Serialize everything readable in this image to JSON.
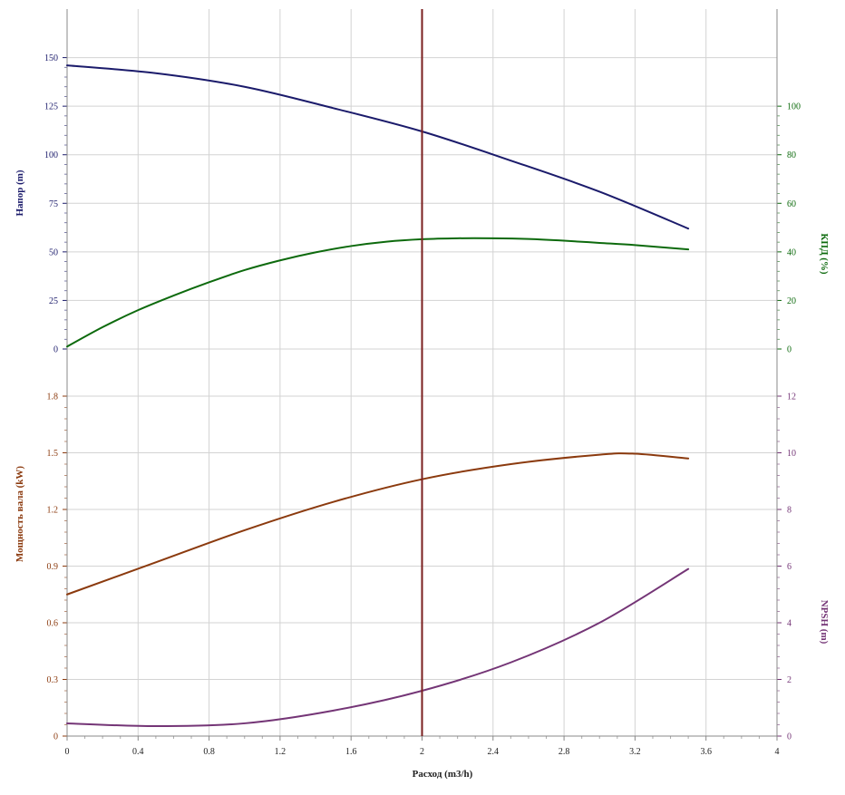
{
  "chart_data": {
    "type": "line",
    "xlabel": "Расход (m3/h)",
    "xlim": [
      0,
      4
    ],
    "x_ticks": [
      "0",
      "0.4",
      "0.8",
      "1.2",
      "1.6",
      "2",
      "2.4",
      "2.8",
      "3.2",
      "3.6",
      "4"
    ],
    "duty_point_x": 2,
    "grid": true,
    "colors": {
      "head": "#1b1b6b",
      "efficiency": "#0d6a0d",
      "power": "#8b3a0e",
      "npsh": "#743576",
      "duty_line": "#7a1f1f",
      "grid": "#d3d3d3"
    },
    "panels": [
      {
        "name": "top",
        "left_axis": {
          "label": "Напор (m)",
          "range": [
            0,
            175
          ],
          "ticks": [
            "0",
            "25",
            "50",
            "75",
            "100",
            "125",
            "150"
          ]
        },
        "right_axis": {
          "label": "КПД (%)",
          "range": [
            0,
            140
          ],
          "ticks": [
            "0",
            "20",
            "40",
            "60",
            "80",
            "100"
          ]
        },
        "series": [
          {
            "key": "head",
            "axis": "left",
            "x": [
              0,
              0.5,
              1.0,
              1.5,
              2.0,
              2.5,
              3.0,
              3.5
            ],
            "y": [
              146,
              142,
              135,
              124,
              112,
              97,
              81,
              62
            ]
          },
          {
            "key": "efficiency",
            "axis": "right",
            "x": [
              0,
              0.2,
              0.4,
              0.6,
              0.8,
              1.0,
              1.2,
              1.4,
              1.6,
              1.8,
              2.0,
              2.2,
              2.4,
              2.6,
              2.8,
              3.0,
              3.2,
              3.5
            ],
            "y": [
              1,
              9,
              16,
              22,
              27.5,
              32.5,
              36.5,
              39.8,
              42.4,
              44.2,
              45.2,
              45.6,
              45.6,
              45.3,
              44.6,
              43.7,
              42.8,
              41
            ]
          }
        ]
      },
      {
        "name": "bottom",
        "left_axis": {
          "label": "Мощность вала (kW)",
          "range": [
            0,
            1.8
          ],
          "ticks": [
            "0",
            "0.3",
            "0.6",
            "0.9",
            "1.2",
            "1.5",
            "1.8"
          ]
        },
        "right_axis": {
          "label": "NPSH (m)",
          "range": [
            0,
            12
          ],
          "ticks": [
            "0",
            "2",
            "4",
            "6",
            "8",
            "10",
            "12"
          ]
        },
        "series": [
          {
            "key": "power",
            "axis": "left",
            "x": [
              0,
              0.5,
              1.0,
              1.5,
              2.0,
              2.5,
              3.0,
              3.2,
              3.5
            ],
            "y": [
              0.75,
              0.92,
              1.09,
              1.24,
              1.36,
              1.44,
              1.49,
              1.495,
              1.47
            ]
          },
          {
            "key": "npsh",
            "axis": "right",
            "x": [
              0,
              0.5,
              1.0,
              1.5,
              2.0,
              2.5,
              3.0,
              3.5
            ],
            "y": [
              0.45,
              0.35,
              0.45,
              0.9,
              1.6,
              2.6,
              4.0,
              5.9
            ]
          }
        ]
      }
    ]
  }
}
